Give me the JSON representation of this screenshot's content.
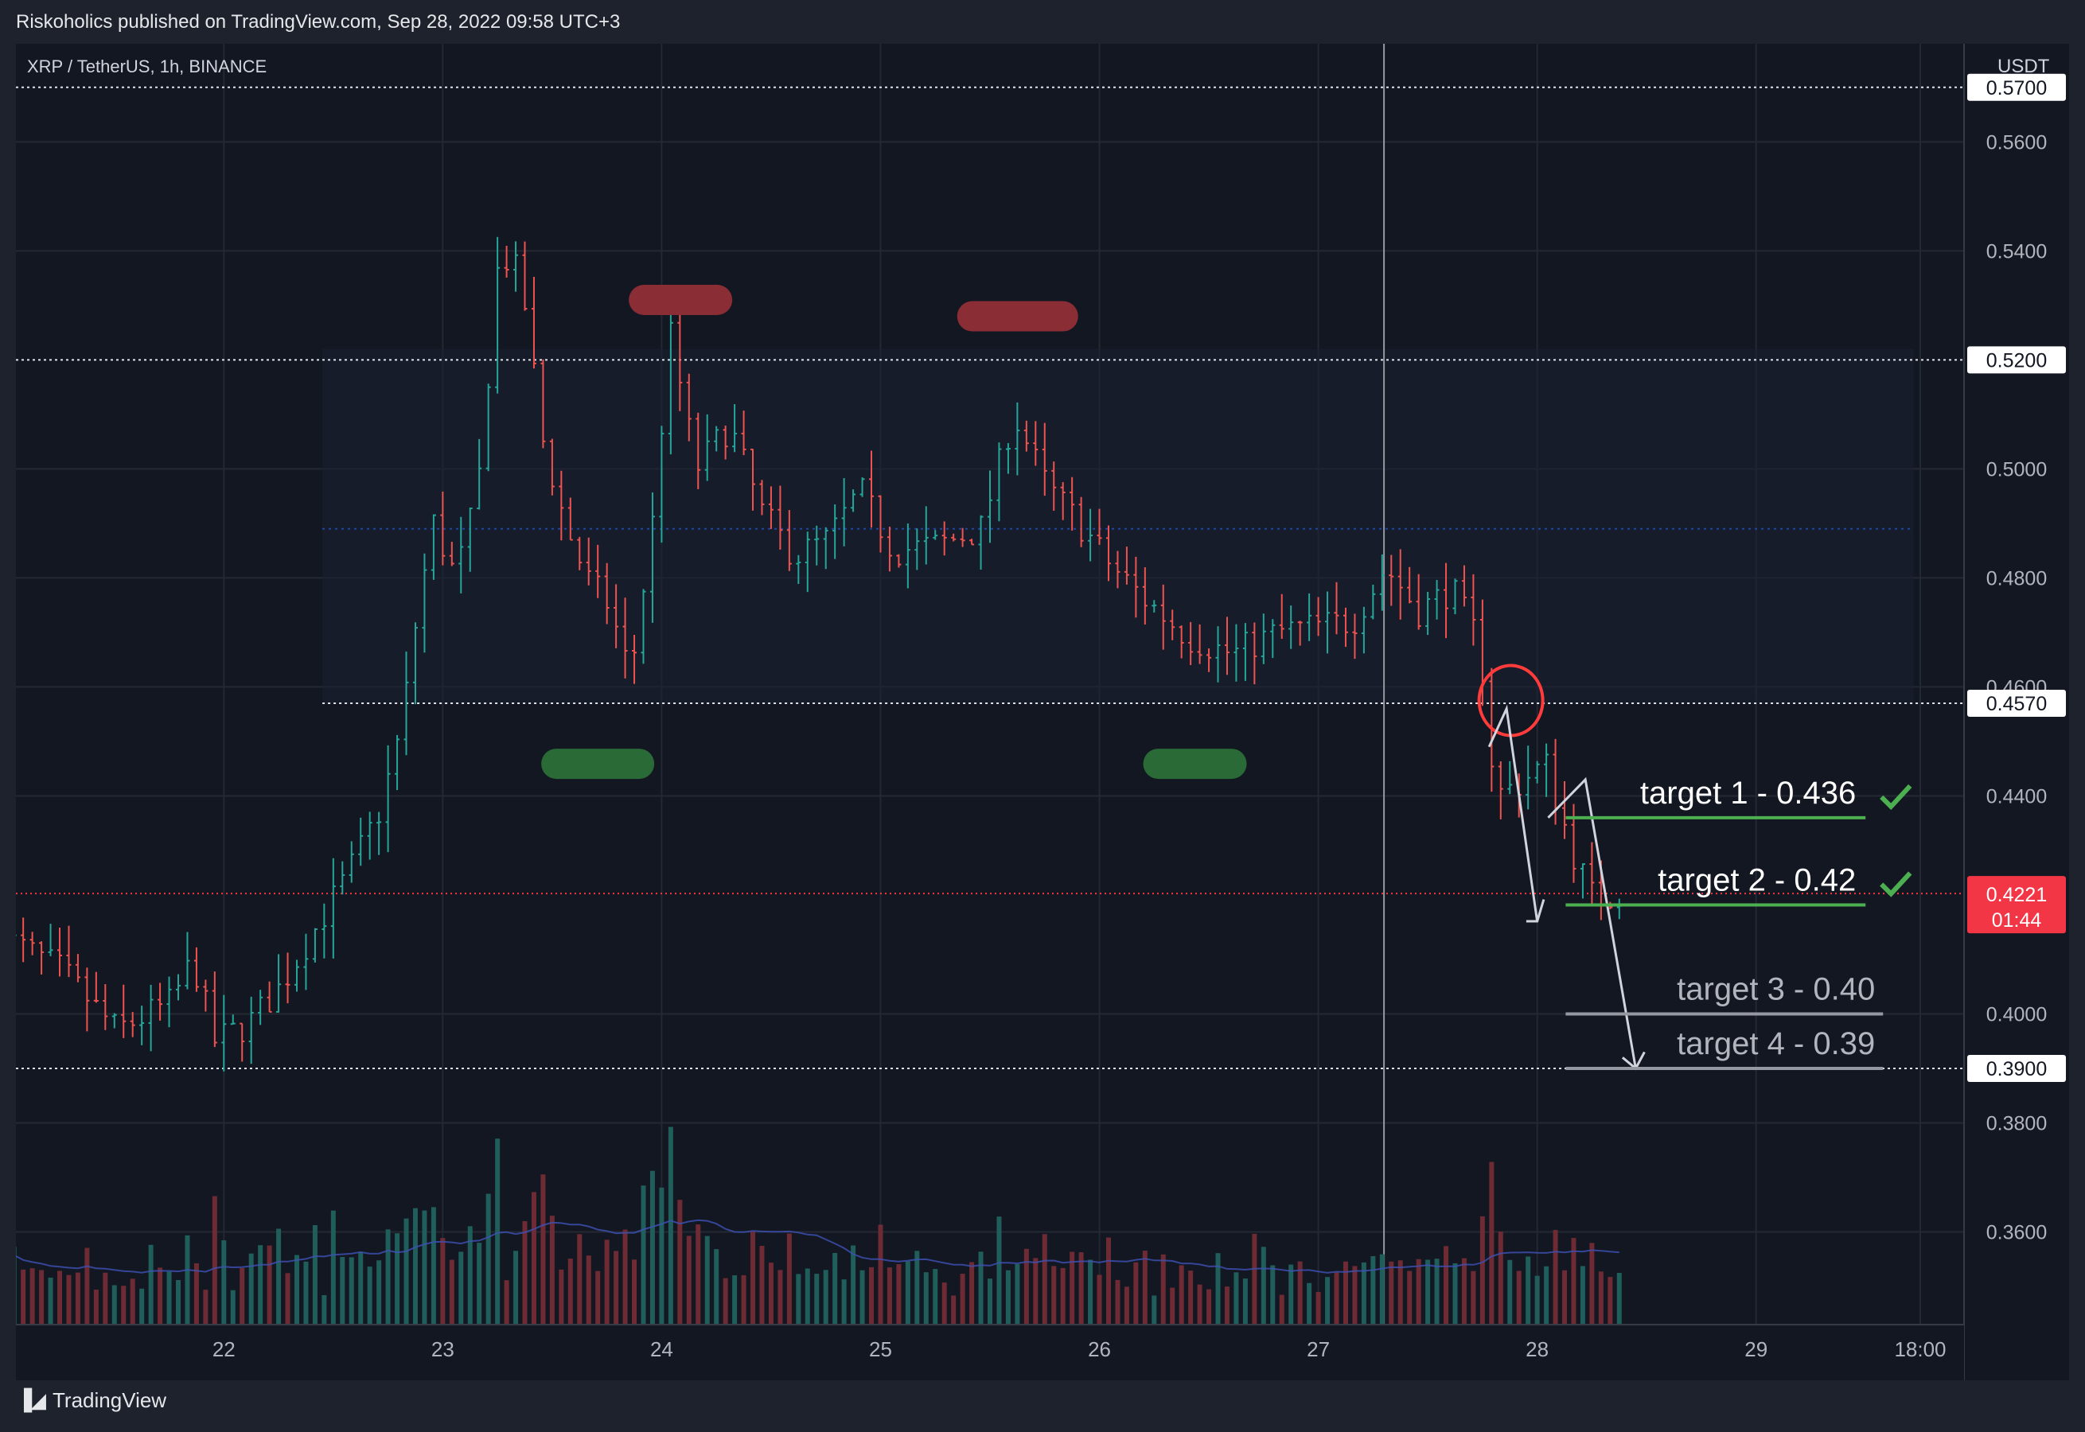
{
  "caption": "Riskoholics published on TradingView.com, Sep 28, 2022 09:58 UTC+3",
  "brand": "TradingView",
  "chart_data": {
    "type": "candlestick",
    "symbol_line": "XRP / TetherUS, 1h, BINANCE",
    "currency": "USDT",
    "y_ticks": [
      "0.5700",
      "0.5600",
      "0.5400",
      "0.5200",
      "0.5000",
      "0.4800",
      "0.4600",
      "0.4570",
      "0.4400",
      "0.4221",
      "0.4000",
      "0.3900",
      "0.3800",
      "0.3600"
    ],
    "y_tick_values": [
      0.57,
      0.56,
      0.54,
      0.52,
      0.5,
      0.48,
      0.46,
      0.457,
      0.44,
      0.4221,
      0.4,
      0.39,
      0.38,
      0.36
    ],
    "boxed_levels": [
      0.57,
      0.52,
      0.457,
      0.39
    ],
    "last_price": {
      "value": "0.4221",
      "countdown": "01:44",
      "color": "#f23645"
    },
    "x_ticks": [
      "22",
      "23",
      "24",
      "25",
      "26",
      "27",
      "28",
      "29",
      "18:00"
    ],
    "x_tick_day": [
      22,
      23,
      24,
      25,
      26,
      27,
      28,
      29,
      29.75
    ],
    "ylim": [
      0.343,
      0.578
    ],
    "xlim": [
      21.05,
      29.95
    ],
    "targets": [
      {
        "label": "target 1 - 0.436",
        "value": 0.436,
        "hit": true
      },
      {
        "label": "target 2 - 0.42",
        "value": 0.42,
        "hit": true
      },
      {
        "label": "target 3 - 0.40",
        "value": 0.4,
        "hit": false
      },
      {
        "label": "target 4 - 0.39",
        "value": 0.39,
        "hit": false
      }
    ],
    "pattern": {
      "tops": [
        0.531,
        0.528
      ],
      "bottoms": [
        0.4545,
        0.4545
      ]
    },
    "price_path": [
      [
        21.0,
        0.415
      ],
      [
        21.3,
        0.408
      ],
      [
        21.55,
        0.397
      ],
      [
        21.8,
        0.402
      ],
      [
        21.9,
        0.41
      ],
      [
        22.0,
        0.395
      ],
      [
        22.15,
        0.398
      ],
      [
        22.3,
        0.405
      ],
      [
        22.45,
        0.415
      ],
      [
        22.6,
        0.425
      ],
      [
        22.75,
        0.437
      ],
      [
        22.85,
        0.452
      ],
      [
        22.93,
        0.475
      ],
      [
        23.0,
        0.49
      ],
      [
        23.1,
        0.48
      ],
      [
        23.2,
        0.495
      ],
      [
        23.3,
        0.54
      ],
      [
        23.4,
        0.535
      ],
      [
        23.5,
        0.505
      ],
      [
        23.6,
        0.49
      ],
      [
        23.7,
        0.48
      ],
      [
        23.8,
        0.475
      ],
      [
        23.9,
        0.462
      ],
      [
        24.0,
        0.49
      ],
      [
        24.08,
        0.525
      ],
      [
        24.2,
        0.5
      ],
      [
        24.35,
        0.508
      ],
      [
        24.5,
        0.492
      ],
      [
        24.65,
        0.484
      ],
      [
        24.8,
        0.487
      ],
      [
        24.95,
        0.496
      ],
      [
        25.1,
        0.485
      ],
      [
        25.3,
        0.486
      ],
      [
        25.5,
        0.489
      ],
      [
        25.65,
        0.51
      ],
      [
        25.8,
        0.497
      ],
      [
        25.95,
        0.49
      ],
      [
        26.1,
        0.482
      ],
      [
        26.25,
        0.476
      ],
      [
        26.45,
        0.469
      ],
      [
        26.65,
        0.466
      ],
      [
        26.85,
        0.47
      ],
      [
        27.0,
        0.471
      ],
      [
        27.2,
        0.472
      ],
      [
        27.35,
        0.482
      ],
      [
        27.5,
        0.474
      ],
      [
        27.65,
        0.478
      ],
      [
        27.78,
        0.468
      ],
      [
        27.85,
        0.44
      ],
      [
        27.95,
        0.442
      ],
      [
        28.08,
        0.446
      ],
      [
        28.2,
        0.43
      ],
      [
        28.3,
        0.421
      ],
      [
        28.4,
        0.4221
      ]
    ]
  }
}
